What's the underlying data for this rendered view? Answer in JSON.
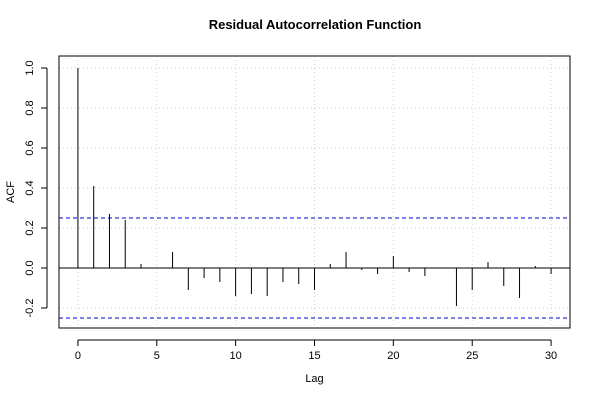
{
  "chart_data": {
    "type": "bar",
    "title": "Residual Autocorrelation Function",
    "xlabel": "Lag",
    "ylabel": "ACF",
    "xlim": [
      -1.2,
      31.2
    ],
    "ylim": [
      -0.3,
      1.06
    ],
    "xticks": [
      0,
      5,
      10,
      15,
      20,
      25,
      30
    ],
    "yticks": [
      -0.2,
      0.0,
      0.2,
      0.4,
      0.6,
      0.8,
      1.0
    ],
    "ytick_labels": [
      "-0.2",
      "0.0",
      "0.2",
      "0.4",
      "0.6",
      "0.8",
      "1.0"
    ],
    "grid": true,
    "confidence_band": [
      0.25,
      -0.25
    ],
    "colors": {
      "bars": "#000000",
      "band": "#0000cc",
      "grid": "#d3d3d3",
      "zero": "#000000"
    },
    "x": [
      0,
      1,
      2,
      3,
      4,
      5,
      6,
      7,
      8,
      9,
      10,
      11,
      12,
      13,
      14,
      15,
      16,
      17,
      18,
      19,
      20,
      21,
      22,
      23,
      24,
      25,
      26,
      27,
      28,
      29,
      30
    ],
    "values": [
      1.0,
      0.41,
      0.27,
      0.24,
      0.02,
      0.0,
      0.08,
      -0.11,
      -0.05,
      -0.07,
      -0.14,
      -0.13,
      -0.14,
      -0.07,
      -0.08,
      -0.11,
      0.02,
      0.08,
      -0.01,
      -0.03,
      0.06,
      -0.02,
      -0.04,
      0.0,
      -0.19,
      -0.11,
      0.03,
      -0.09,
      -0.15,
      0.01,
      -0.03
    ]
  }
}
